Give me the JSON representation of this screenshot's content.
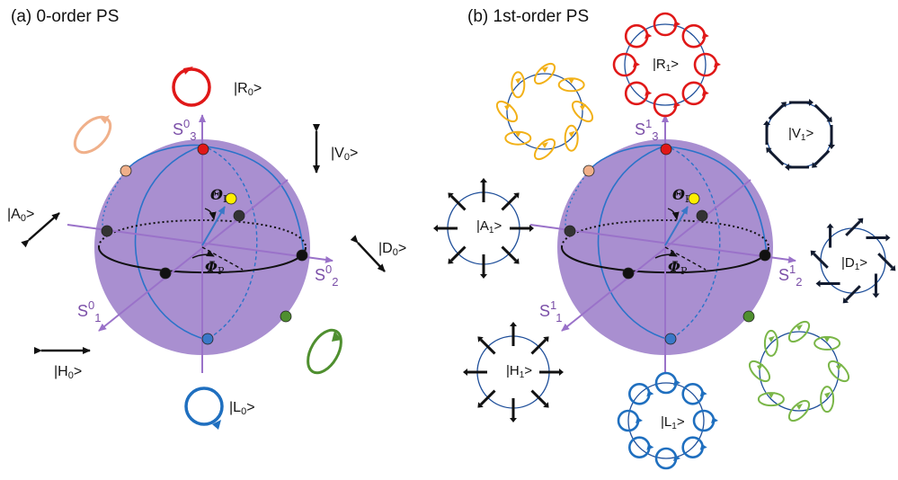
{
  "panels": [
    {
      "title": "(a)  0-order PS",
      "order": "0",
      "axes": {
        "s1": "S",
        "s2": "S",
        "s3": "S"
      },
      "angles": {
        "theta": "Θ",
        "phi": "Φ",
        "sub": "P"
      },
      "states": {
        "R": "|R",
        "V": "|V",
        "A": "|A",
        "D": "|D",
        "H": "|H",
        "L": "|L"
      },
      "close": ">"
    },
    {
      "title": "(b)  1st-order PS",
      "order": "1",
      "axes": {
        "s1": "S",
        "s2": "S",
        "s3": "S"
      },
      "angles": {
        "theta": "Θ",
        "phi": "Φ",
        "sub": "P"
      },
      "states": {
        "R": "|R",
        "V": "|V",
        "A": "|A",
        "D": "|D",
        "H": "|H",
        "L": "|L"
      },
      "close": ">"
    }
  ],
  "colors": {
    "sphere": "#a98fd0",
    "axis": "#9a72c9",
    "red": "#e01818",
    "blue": "#1f6fbf",
    "orange": "#f0b08a",
    "gold": "#f2b118",
    "green": "#4f8f2f",
    "lightgreen": "#7ab648",
    "navy": "#111a2e",
    "meridian": "#2a73c9"
  }
}
